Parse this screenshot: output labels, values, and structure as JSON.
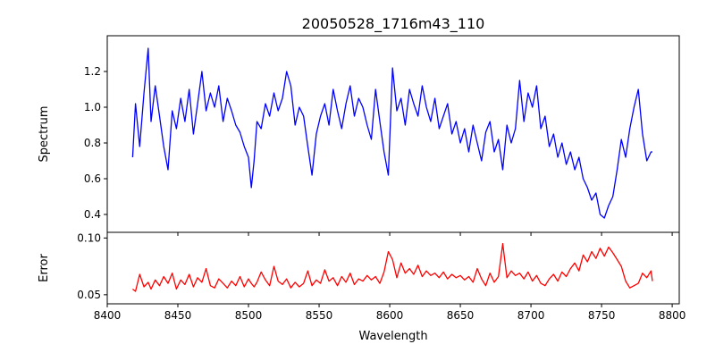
{
  "chart_data": [
    {
      "type": "line",
      "title": "20050528_1716m43_110",
      "xlabel": "",
      "ylabel": "Spectrum",
      "xlim": [
        8400,
        8805
      ],
      "ylim": [
        0.3,
        1.4
      ],
      "xticks": [
        8400,
        8450,
        8500,
        8550,
        8600,
        8650,
        8700,
        8750,
        8800
      ],
      "yticks": [
        0.4,
        0.6,
        0.8,
        1.0,
        1.2
      ],
      "ytick_labels": [
        "0.4",
        "0.6",
        "0.8",
        "1.0",
        "1.2"
      ],
      "grid": false,
      "series": [
        {
          "color": "#0000ff",
          "x_start": 8418,
          "x_step": 0.85,
          "count": 434,
          "x": [
            8418,
            8420,
            8423,
            8426,
            8429,
            8431,
            8434,
            8437,
            8440,
            8443,
            8446,
            8449,
            8452,
            8455,
            8458,
            8461,
            8464,
            8467,
            8470,
            8473,
            8476,
            8479,
            8482,
            8485,
            8488,
            8491,
            8494,
            8497,
            8500,
            8502,
            8504,
            8506,
            8509,
            8512,
            8515,
            8518,
            8521,
            8524,
            8527,
            8530,
            8533,
            8536,
            8539,
            8542,
            8545,
            8548,
            8551,
            8554,
            8557,
            8560,
            8563,
            8566,
            8569,
            8572,
            8575,
            8578,
            8581,
            8584,
            8587,
            8590,
            8593,
            8596,
            8599,
            8602,
            8605,
            8608,
            8611,
            8614,
            8617,
            8620,
            8623,
            8626,
            8629,
            8632,
            8635,
            8638,
            8641,
            8644,
            8647,
            8650,
            8653,
            8656,
            8659,
            8662,
            8665,
            8668,
            8671,
            8674,
            8677,
            8680,
            8683,
            8686,
            8689,
            8692,
            8695,
            8698,
            8701,
            8704,
            8707,
            8710,
            8713,
            8716,
            8719,
            8722,
            8725,
            8728,
            8731,
            8734,
            8737,
            8740,
            8743,
            8746,
            8749,
            8752,
            8755,
            8758,
            8761,
            8764,
            8767,
            8770,
            8773,
            8776,
            8779,
            8782,
            8785,
            8786
          ],
          "y": [
            0.72,
            1.02,
            0.78,
            1.08,
            1.33,
            0.92,
            1.12,
            0.95,
            0.78,
            0.65,
            0.98,
            0.88,
            1.05,
            0.92,
            1.1,
            0.85,
            1.02,
            1.2,
            0.98,
            1.08,
            1.0,
            1.12,
            0.92,
            1.05,
            0.98,
            0.9,
            0.86,
            0.78,
            0.72,
            0.55,
            0.7,
            0.92,
            0.88,
            1.02,
            0.95,
            1.08,
            0.98,
            1.05,
            1.2,
            1.12,
            0.9,
            1.0,
            0.95,
            0.78,
            0.62,
            0.85,
            0.95,
            1.02,
            0.9,
            1.1,
            0.98,
            0.88,
            1.02,
            1.12,
            0.95,
            1.05,
            1.0,
            0.9,
            0.82,
            1.1,
            0.92,
            0.75,
            0.62,
            1.22,
            0.98,
            1.05,
            0.9,
            1.1,
            1.02,
            0.95,
            1.12,
            1.0,
            0.92,
            1.05,
            0.88,
            0.95,
            1.02,
            0.85,
            0.92,
            0.8,
            0.88,
            0.75,
            0.9,
            0.8,
            0.7,
            0.86,
            0.92,
            0.75,
            0.82,
            0.65,
            0.9,
            0.8,
            0.88,
            1.15,
            0.92,
            1.08,
            1.0,
            1.12,
            0.88,
            0.95,
            0.78,
            0.85,
            0.72,
            0.8,
            0.68,
            0.75,
            0.65,
            0.72,
            0.6,
            0.55,
            0.48,
            0.52,
            0.4,
            0.38,
            0.45,
            0.5,
            0.65,
            0.82,
            0.72,
            0.88,
            1.0,
            1.1,
            0.85,
            0.7,
            0.75,
            0.75
          ]
        }
      ]
    },
    {
      "type": "line",
      "title": "",
      "xlabel": "Wavelength",
      "ylabel": "Error",
      "xlim": [
        8400,
        8805
      ],
      "ylim": [
        0.042,
        0.105
      ],
      "xticks": [
        8400,
        8450,
        8500,
        8550,
        8600,
        8650,
        8700,
        8750,
        8800
      ],
      "xtick_labels": [
        "8400",
        "8450",
        "8500",
        "8550",
        "8600",
        "8650",
        "8700",
        "8750",
        "8800"
      ],
      "yticks": [
        0.05,
        0.1
      ],
      "ytick_labels": [
        "0.05",
        "0.10"
      ],
      "grid": false,
      "series": [
        {
          "color": "#ff0000",
          "x": [
            8418,
            8420,
            8423,
            8426,
            8429,
            8431,
            8434,
            8437,
            8440,
            8443,
            8446,
            8449,
            8452,
            8455,
            8458,
            8461,
            8464,
            8467,
            8470,
            8473,
            8476,
            8479,
            8482,
            8485,
            8488,
            8491,
            8494,
            8497,
            8500,
            8502,
            8504,
            8506,
            8509,
            8512,
            8515,
            8518,
            8521,
            8524,
            8527,
            8530,
            8533,
            8536,
            8539,
            8542,
            8545,
            8548,
            8551,
            8554,
            8557,
            8560,
            8563,
            8566,
            8569,
            8572,
            8575,
            8578,
            8581,
            8584,
            8587,
            8590,
            8593,
            8596,
            8599,
            8602,
            8605,
            8608,
            8611,
            8614,
            8617,
            8620,
            8623,
            8626,
            8629,
            8632,
            8635,
            8638,
            8641,
            8644,
            8647,
            8650,
            8653,
            8656,
            8659,
            8662,
            8665,
            8668,
            8671,
            8674,
            8677,
            8680,
            8683,
            8686,
            8689,
            8692,
            8695,
            8698,
            8701,
            8704,
            8707,
            8710,
            8713,
            8716,
            8719,
            8722,
            8725,
            8728,
            8731,
            8734,
            8737,
            8740,
            8743,
            8746,
            8749,
            8752,
            8755,
            8758,
            8761,
            8764,
            8767,
            8770,
            8773,
            8776,
            8779,
            8782,
            8785,
            8786
          ],
          "y": [
            0.055,
            0.053,
            0.068,
            0.057,
            0.061,
            0.055,
            0.063,
            0.058,
            0.066,
            0.06,
            0.069,
            0.055,
            0.063,
            0.059,
            0.068,
            0.057,
            0.065,
            0.061,
            0.073,
            0.058,
            0.056,
            0.064,
            0.06,
            0.056,
            0.062,
            0.058,
            0.066,
            0.057,
            0.064,
            0.06,
            0.057,
            0.061,
            0.07,
            0.063,
            0.058,
            0.075,
            0.062,
            0.059,
            0.064,
            0.056,
            0.061,
            0.057,
            0.06,
            0.071,
            0.058,
            0.063,
            0.06,
            0.072,
            0.062,
            0.065,
            0.058,
            0.066,
            0.061,
            0.069,
            0.059,
            0.064,
            0.062,
            0.067,
            0.063,
            0.066,
            0.06,
            0.07,
            0.088,
            0.081,
            0.065,
            0.078,
            0.069,
            0.073,
            0.068,
            0.076,
            0.066,
            0.071,
            0.067,
            0.069,
            0.065,
            0.07,
            0.064,
            0.068,
            0.065,
            0.067,
            0.063,
            0.066,
            0.061,
            0.073,
            0.064,
            0.058,
            0.069,
            0.061,
            0.066,
            0.095,
            0.065,
            0.071,
            0.067,
            0.069,
            0.064,
            0.07,
            0.062,
            0.067,
            0.06,
            0.058,
            0.064,
            0.068,
            0.062,
            0.07,
            0.066,
            0.073,
            0.078,
            0.071,
            0.085,
            0.079,
            0.088,
            0.082,
            0.091,
            0.084,
            0.092,
            0.087,
            0.081,
            0.075,
            0.062,
            0.056,
            0.058,
            0.06,
            0.069,
            0.065,
            0.071,
            0.062
          ]
        }
      ]
    }
  ]
}
